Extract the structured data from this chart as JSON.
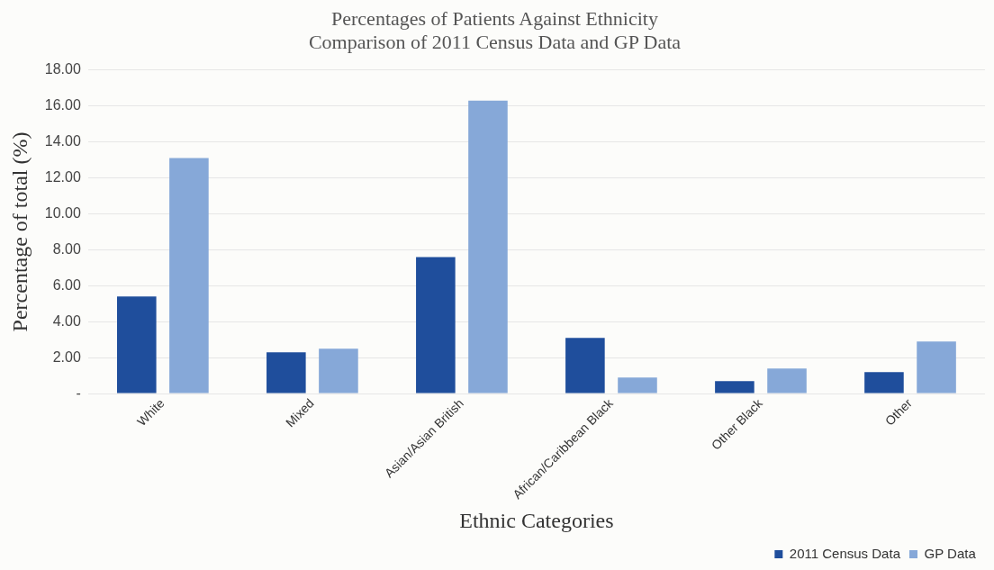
{
  "chart_data": {
    "type": "bar",
    "title": "Percentages of Patients Against Ethnicity",
    "subtitle": "Comparison of 2011 Census Data and GP Data",
    "xlabel": "Ethnic Categories",
    "ylabel": "Percentage of total (%)",
    "categories": [
      "White",
      "Mixed",
      "Asian/Asian British",
      "African/Caribbean Black",
      "Other Black",
      "Other"
    ],
    "series": [
      {
        "name": "2011 Census Data",
        "color": "#1f4e9c",
        "values": [
          5.4,
          2.3,
          7.6,
          3.1,
          0.7,
          1.2
        ]
      },
      {
        "name": "GP Data",
        "color": "#86a8d8",
        "values": [
          13.1,
          2.5,
          16.3,
          0.9,
          1.4,
          2.9
        ]
      }
    ],
    "ylim": [
      0,
      18
    ],
    "yticks": [
      {
        "value": 0,
        "label": "-"
      },
      {
        "value": 2,
        "label": "2.00"
      },
      {
        "value": 4,
        "label": "4.00"
      },
      {
        "value": 6,
        "label": "6.00"
      },
      {
        "value": 8,
        "label": "8.00"
      },
      {
        "value": 10,
        "label": "10.00"
      },
      {
        "value": 12,
        "label": "12.00"
      },
      {
        "value": 14,
        "label": "14.00"
      },
      {
        "value": 16,
        "label": "16.00"
      },
      {
        "value": 18,
        "label": "18.00"
      }
    ],
    "grid": "y",
    "legend": "bottom right"
  }
}
